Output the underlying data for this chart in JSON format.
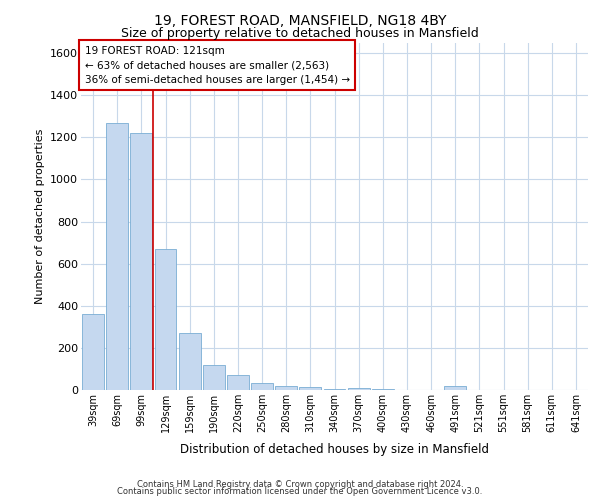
{
  "title1": "19, FOREST ROAD, MANSFIELD, NG18 4BY",
  "title2": "Size of property relative to detached houses in Mansfield",
  "xlabel": "Distribution of detached houses by size in Mansfield",
  "ylabel": "Number of detached properties",
  "footer1": "Contains HM Land Registry data © Crown copyright and database right 2024.",
  "footer2": "Contains public sector information licensed under the Open Government Licence v3.0.",
  "annotation_title": "19 FOREST ROAD: 121sqm",
  "annotation_line1": "← 63% of detached houses are smaller (2,563)",
  "annotation_line2": "36% of semi-detached houses are larger (1,454) →",
  "property_size_sqm": 121,
  "bar_color": "#c5d8ef",
  "bar_edge_color": "#7aadd4",
  "marker_line_color": "#cc0000",
  "annotation_box_edge_color": "#cc0000",
  "background_color": "#ffffff",
  "grid_color": "#c8d8ea",
  "categories": [
    "39sqm",
    "69sqm",
    "99sqm",
    "129sqm",
    "159sqm",
    "190sqm",
    "220sqm",
    "250sqm",
    "280sqm",
    "310sqm",
    "340sqm",
    "370sqm",
    "400sqm",
    "430sqm",
    "460sqm",
    "491sqm",
    "521sqm",
    "551sqm",
    "581sqm",
    "611sqm",
    "641sqm"
  ],
  "values": [
    360,
    1270,
    1220,
    670,
    270,
    120,
    70,
    35,
    20,
    15,
    5,
    10,
    5,
    0,
    0,
    20,
    0,
    0,
    0,
    0,
    0
  ],
  "ylim": [
    0,
    1650
  ],
  "yticks": [
    0,
    200,
    400,
    600,
    800,
    1000,
    1200,
    1400,
    1600
  ],
  "marker_bar_index": 3
}
